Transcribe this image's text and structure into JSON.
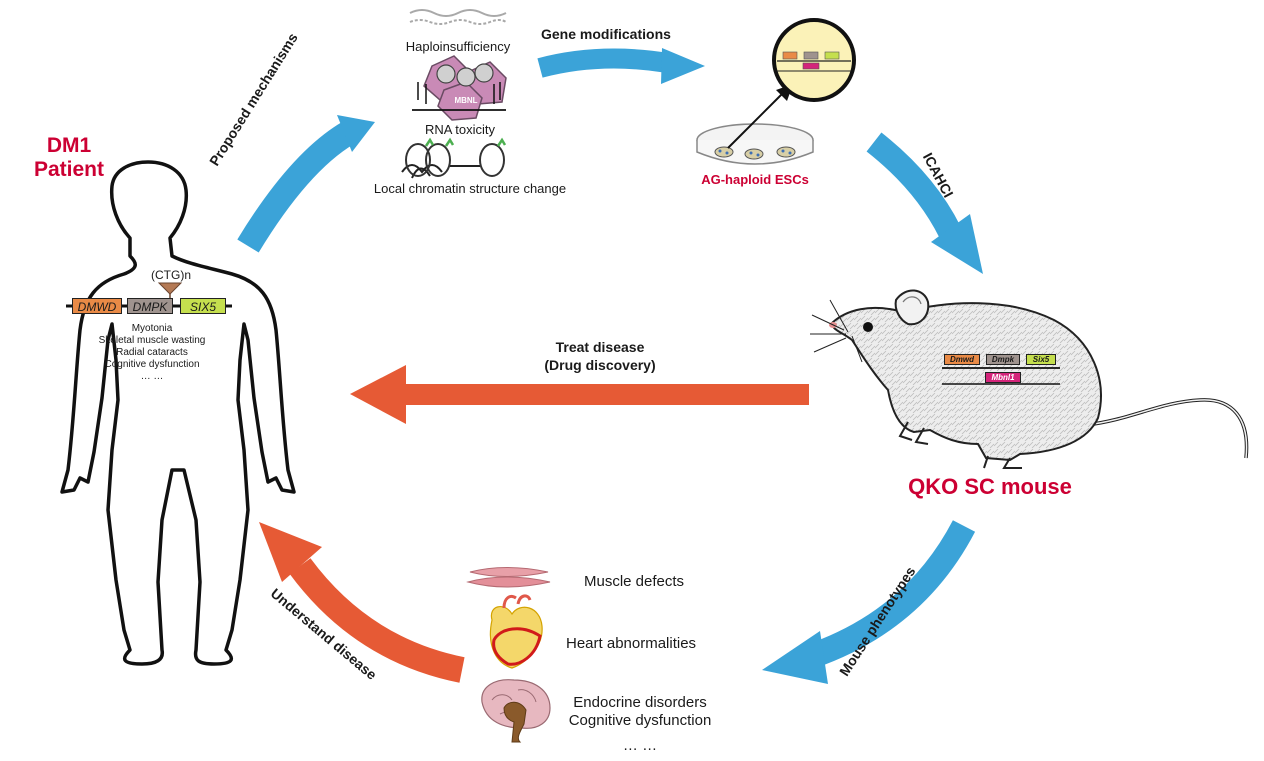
{
  "patient": {
    "title_line1": "DM1",
    "title_line2": "Patient",
    "repeat_label": "(CTG)n",
    "genes": [
      "DMWD",
      "DMPK",
      "SIX5"
    ],
    "symptoms": [
      "Myotonia",
      "Skeletal muscle wasting",
      "Radial cataracts",
      "Cognitive dysfunction",
      "… …"
    ]
  },
  "mechanisms": {
    "items": [
      "Haploinsufficiency",
      "RNA toxicity",
      "Local chromatin structure change"
    ],
    "protein_label": "MBNL"
  },
  "esc": {
    "label": "AG-haploid ESCs"
  },
  "mouse": {
    "title": "QKO SC mouse",
    "genes": [
      "Dmwd",
      "Dmpk",
      "Six5"
    ],
    "mbnl_gene": "Mbnl1"
  },
  "arrows": {
    "proposed": "Proposed mechanisms",
    "gene_mod": "Gene modifications",
    "icahci": "ICAHCI",
    "treat_line1": "Treat disease",
    "treat_line2": "(Drug discovery)",
    "phenotypes": "Mouse phenotypes",
    "understand": "Understand disease"
  },
  "phenotypes": {
    "muscle": "Muscle defects",
    "heart": "Heart abnormalities",
    "brain_line1": "Endocrine disorders",
    "brain_line2": "Cognitive dysfunction",
    "more": "… …"
  },
  "colors": {
    "blue_arrow": "#3ba3d8",
    "orange_arrow": "#e65a35",
    "accent_red": "#cc0033",
    "gene_dmwd": "#e98a46",
    "gene_dmpk": "#9f938e",
    "gene_six5": "#c5df4e",
    "gene_mbnl1": "#d4247a"
  }
}
